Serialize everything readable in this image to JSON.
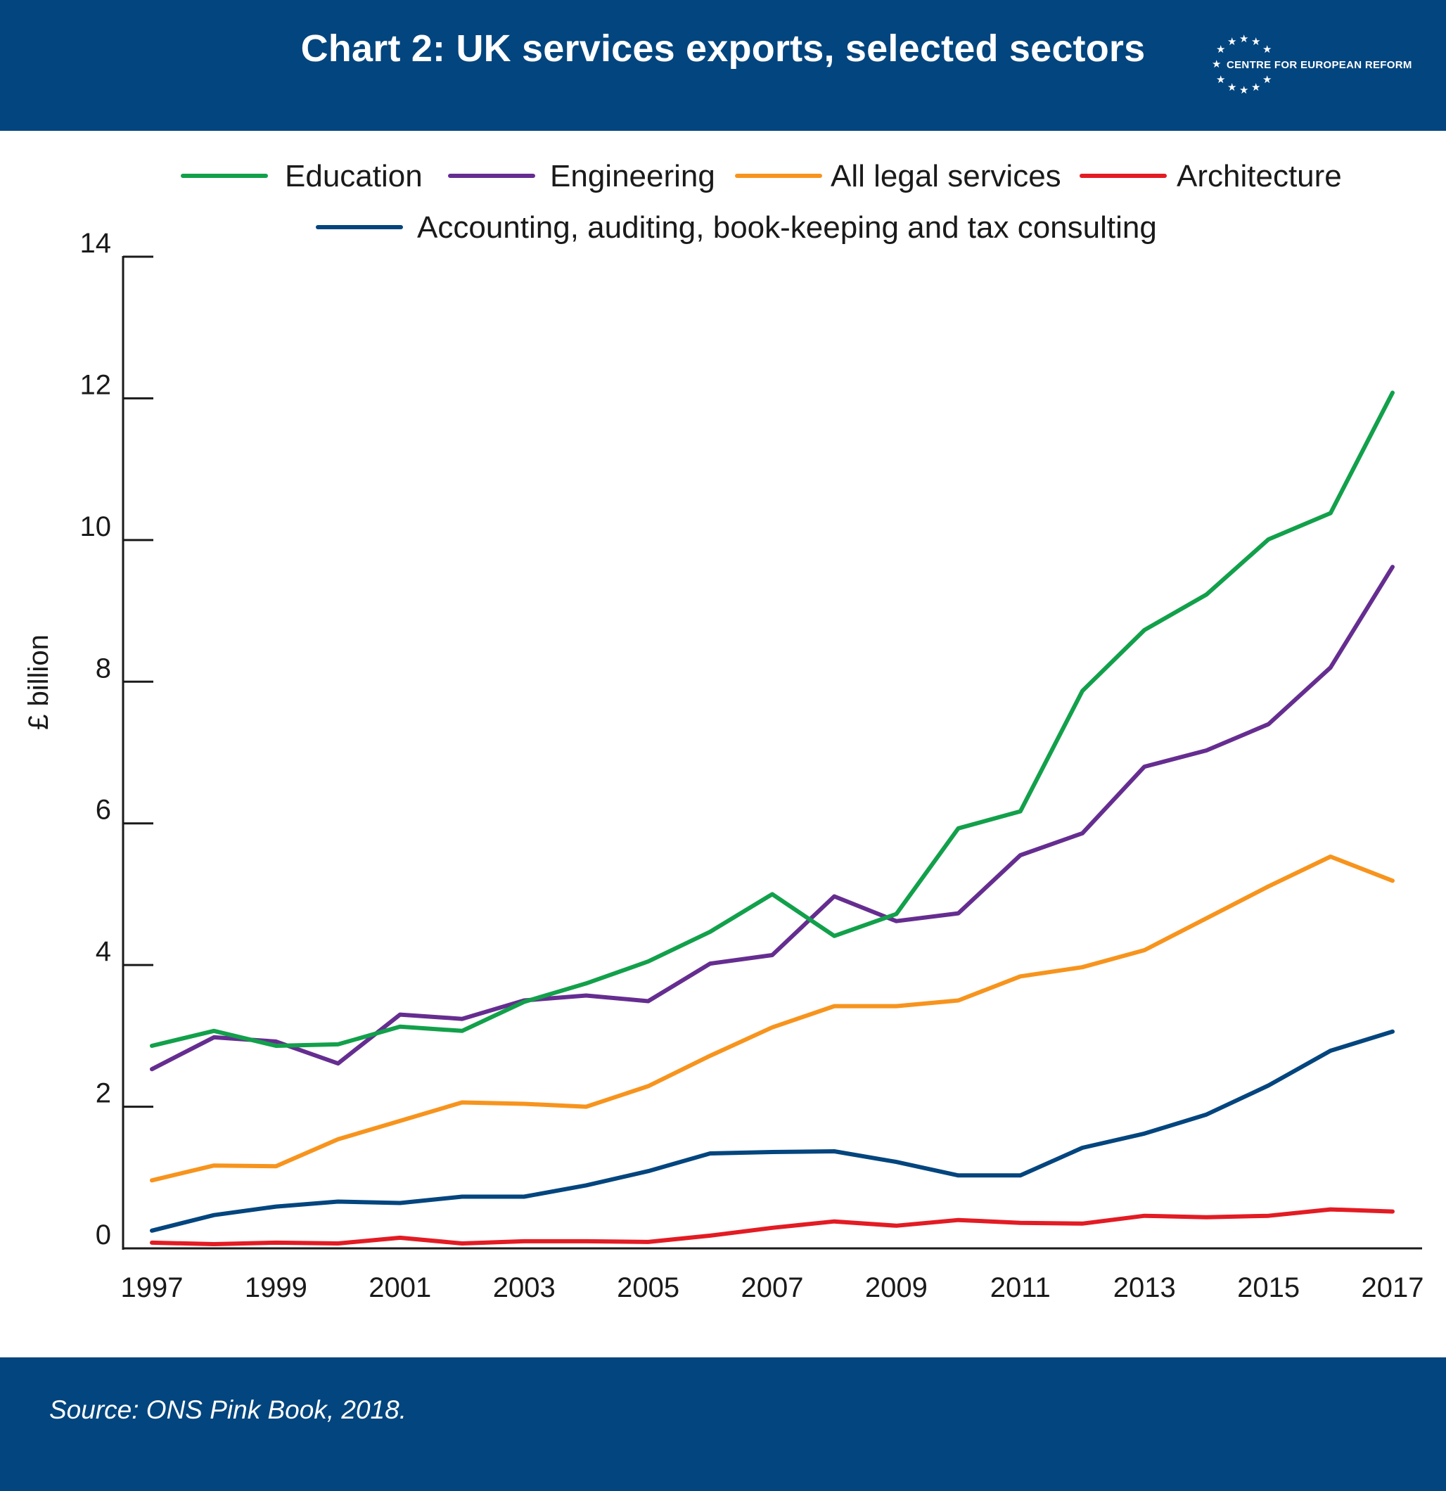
{
  "header": {
    "title": "Chart 2: UK services exports, selected sectors",
    "logo_text": "CENTRE FOR EUROPEAN REFORM",
    "background": "#03457e"
  },
  "footer": {
    "source": "Source: ONS Pink Book, 2018.",
    "background": "#03457e"
  },
  "chart_data": {
    "type": "line",
    "title": "Chart 2: UK services exports, selected sectors",
    "ylabel": "£ billion",
    "xlabel": "",
    "ylim": [
      0,
      14
    ],
    "yticks": [
      0,
      2,
      4,
      6,
      8,
      10,
      12,
      14
    ],
    "xlim": [
      1997,
      2017
    ],
    "xticks": [
      1997,
      1999,
      2001,
      2003,
      2005,
      2007,
      2009,
      2011,
      2013,
      2015,
      2017
    ],
    "grid": false,
    "legend_position": "top",
    "x": [
      1997,
      1998,
      1999,
      2000,
      2001,
      2002,
      2003,
      2004,
      2005,
      2006,
      2007,
      2008,
      2009,
      2010,
      2011,
      2012,
      2013,
      2014,
      2015,
      2016,
      2017
    ],
    "series": [
      {
        "name": "Education",
        "color": "#12a04b",
        "values": [
          2.86,
          3.07,
          2.86,
          2.88,
          3.13,
          3.07,
          3.48,
          3.74,
          4.05,
          4.47,
          5.0,
          4.41,
          4.72,
          5.93,
          6.17,
          7.87,
          8.73,
          9.23,
          10.01,
          10.38,
          12.08
        ]
      },
      {
        "name": "Engineering",
        "color": "#652d90",
        "values": [
          2.53,
          2.98,
          2.92,
          2.61,
          3.3,
          3.24,
          3.5,
          3.57,
          3.49,
          4.02,
          4.14,
          4.97,
          4.62,
          4.73,
          5.55,
          5.86,
          6.8,
          7.03,
          7.4,
          8.2,
          9.62
        ]
      },
      {
        "name": "All legal services",
        "color": "#f7941d",
        "values": [
          0.96,
          1.17,
          1.16,
          1.54,
          1.8,
          2.06,
          2.04,
          2.0,
          2.29,
          2.72,
          3.12,
          3.42,
          3.42,
          3.5,
          3.84,
          3.97,
          4.21,
          4.66,
          5.11,
          5.53,
          5.19
        ]
      },
      {
        "name": "Architecture",
        "color": "#e31b23",
        "values": [
          0.08,
          0.06,
          0.08,
          0.07,
          0.15,
          0.07,
          0.1,
          0.1,
          0.09,
          0.18,
          0.29,
          0.38,
          0.32,
          0.4,
          0.36,
          0.35,
          0.46,
          0.44,
          0.46,
          0.55,
          0.52
        ]
      },
      {
        "name": "Accounting, auditing, book-keeping and tax consulting",
        "color": "#03457e",
        "values": [
          0.25,
          0.47,
          0.59,
          0.66,
          0.64,
          0.73,
          0.73,
          0.89,
          1.09,
          1.34,
          1.36,
          1.37,
          1.22,
          1.03,
          1.03,
          1.42,
          1.62,
          1.89,
          2.3,
          2.79,
          3.06
        ]
      }
    ]
  }
}
